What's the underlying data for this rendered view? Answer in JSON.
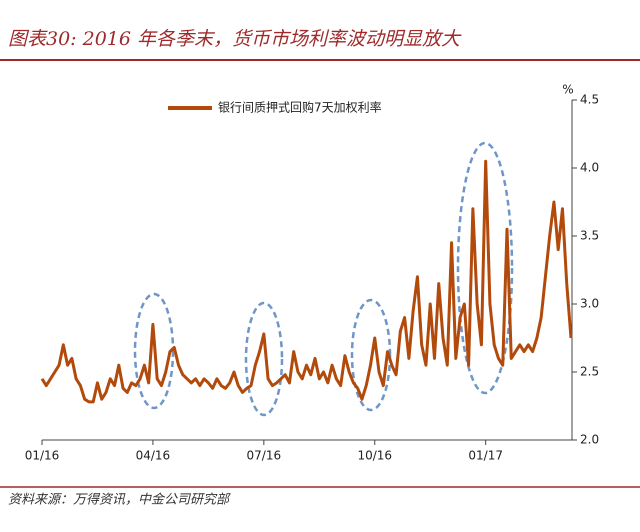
{
  "chart_data": {
    "type": "line",
    "title": "图表30: 2016 年各季末，货币市场利率波动明显放大",
    "y_unit": "%",
    "source": "资料来源：万得资讯，中金公司研究部",
    "categories": [
      "01/16",
      null,
      null,
      null,
      null,
      null,
      null,
      null,
      null,
      null,
      null,
      null,
      null,
      null,
      null,
      null,
      null,
      null,
      null,
      null,
      null,
      null,
      null,
      null,
      null,
      null,
      "04/16",
      null,
      null,
      null,
      null,
      null,
      null,
      null,
      null,
      null,
      null,
      null,
      null,
      null,
      null,
      null,
      null,
      null,
      null,
      null,
      null,
      null,
      null,
      null,
      null,
      null,
      "07/16",
      null,
      null,
      null,
      null,
      null,
      null,
      null,
      null,
      null,
      null,
      null,
      null,
      null,
      null,
      null,
      null,
      null,
      null,
      null,
      null,
      null,
      null,
      null,
      null,
      null,
      "10/16",
      null,
      null,
      null,
      null,
      null,
      null,
      null,
      null,
      null,
      null,
      null,
      null,
      null,
      null,
      null,
      null,
      null,
      null,
      null,
      null,
      null,
      null,
      null,
      null,
      null,
      "01/17",
      null,
      null,
      null,
      null,
      null,
      null,
      null,
      null,
      null,
      null,
      null,
      null,
      null,
      null,
      null,
      null,
      null,
      null,
      null,
      null
    ],
    "series": [
      {
        "name": "银行间质押式回购7天加权利率",
        "color": "#b24a0c",
        "values": [
          2.45,
          2.4,
          2.45,
          2.5,
          2.55,
          2.7,
          2.55,
          2.6,
          2.45,
          2.4,
          2.3,
          2.28,
          2.28,
          2.42,
          2.3,
          2.35,
          2.45,
          2.4,
          2.55,
          2.38,
          2.35,
          2.42,
          2.4,
          2.45,
          2.55,
          2.42,
          2.85,
          2.45,
          2.4,
          2.5,
          2.65,
          2.68,
          2.55,
          2.48,
          2.45,
          2.42,
          2.45,
          2.4,
          2.45,
          2.42,
          2.38,
          2.45,
          2.4,
          2.38,
          2.42,
          2.5,
          2.4,
          2.35,
          2.38,
          2.4,
          2.55,
          2.65,
          2.78,
          2.45,
          2.4,
          2.42,
          2.45,
          2.48,
          2.42,
          2.65,
          2.5,
          2.45,
          2.55,
          2.48,
          2.6,
          2.45,
          2.5,
          2.42,
          2.55,
          2.45,
          2.4,
          2.62,
          2.5,
          2.42,
          2.38,
          2.3,
          2.4,
          2.55,
          2.75,
          2.5,
          2.4,
          2.65,
          2.55,
          2.48,
          2.8,
          2.9,
          2.6,
          2.95,
          3.2,
          2.7,
          2.55,
          3.0,
          2.6,
          3.15,
          2.75,
          2.55,
          3.45,
          2.6,
          2.9,
          3.0,
          2.55,
          3.7,
          3.0,
          2.7,
          4.05,
          3.0,
          2.7,
          2.6,
          2.55,
          3.55,
          2.6,
          2.65,
          2.7,
          2.65,
          2.7,
          2.65,
          2.75,
          2.9,
          3.2,
          3.5,
          3.75,
          3.4,
          3.7,
          3.15,
          2.75
        ]
      }
    ],
    "ylim": [
      2,
      4.5
    ],
    "yticks": [
      {
        "value": 2,
        "label": "2.0"
      },
      {
        "value": 2.5,
        "label": "2.5"
      },
      {
        "value": 3,
        "label": "3.0"
      },
      {
        "value": 3.5,
        "label": "3.5"
      },
      {
        "value": 4,
        "label": "4.0"
      },
      {
        "value": 4.5,
        "label": "4.5"
      }
    ],
    "y_axis_side": "right",
    "grid": false
  }
}
